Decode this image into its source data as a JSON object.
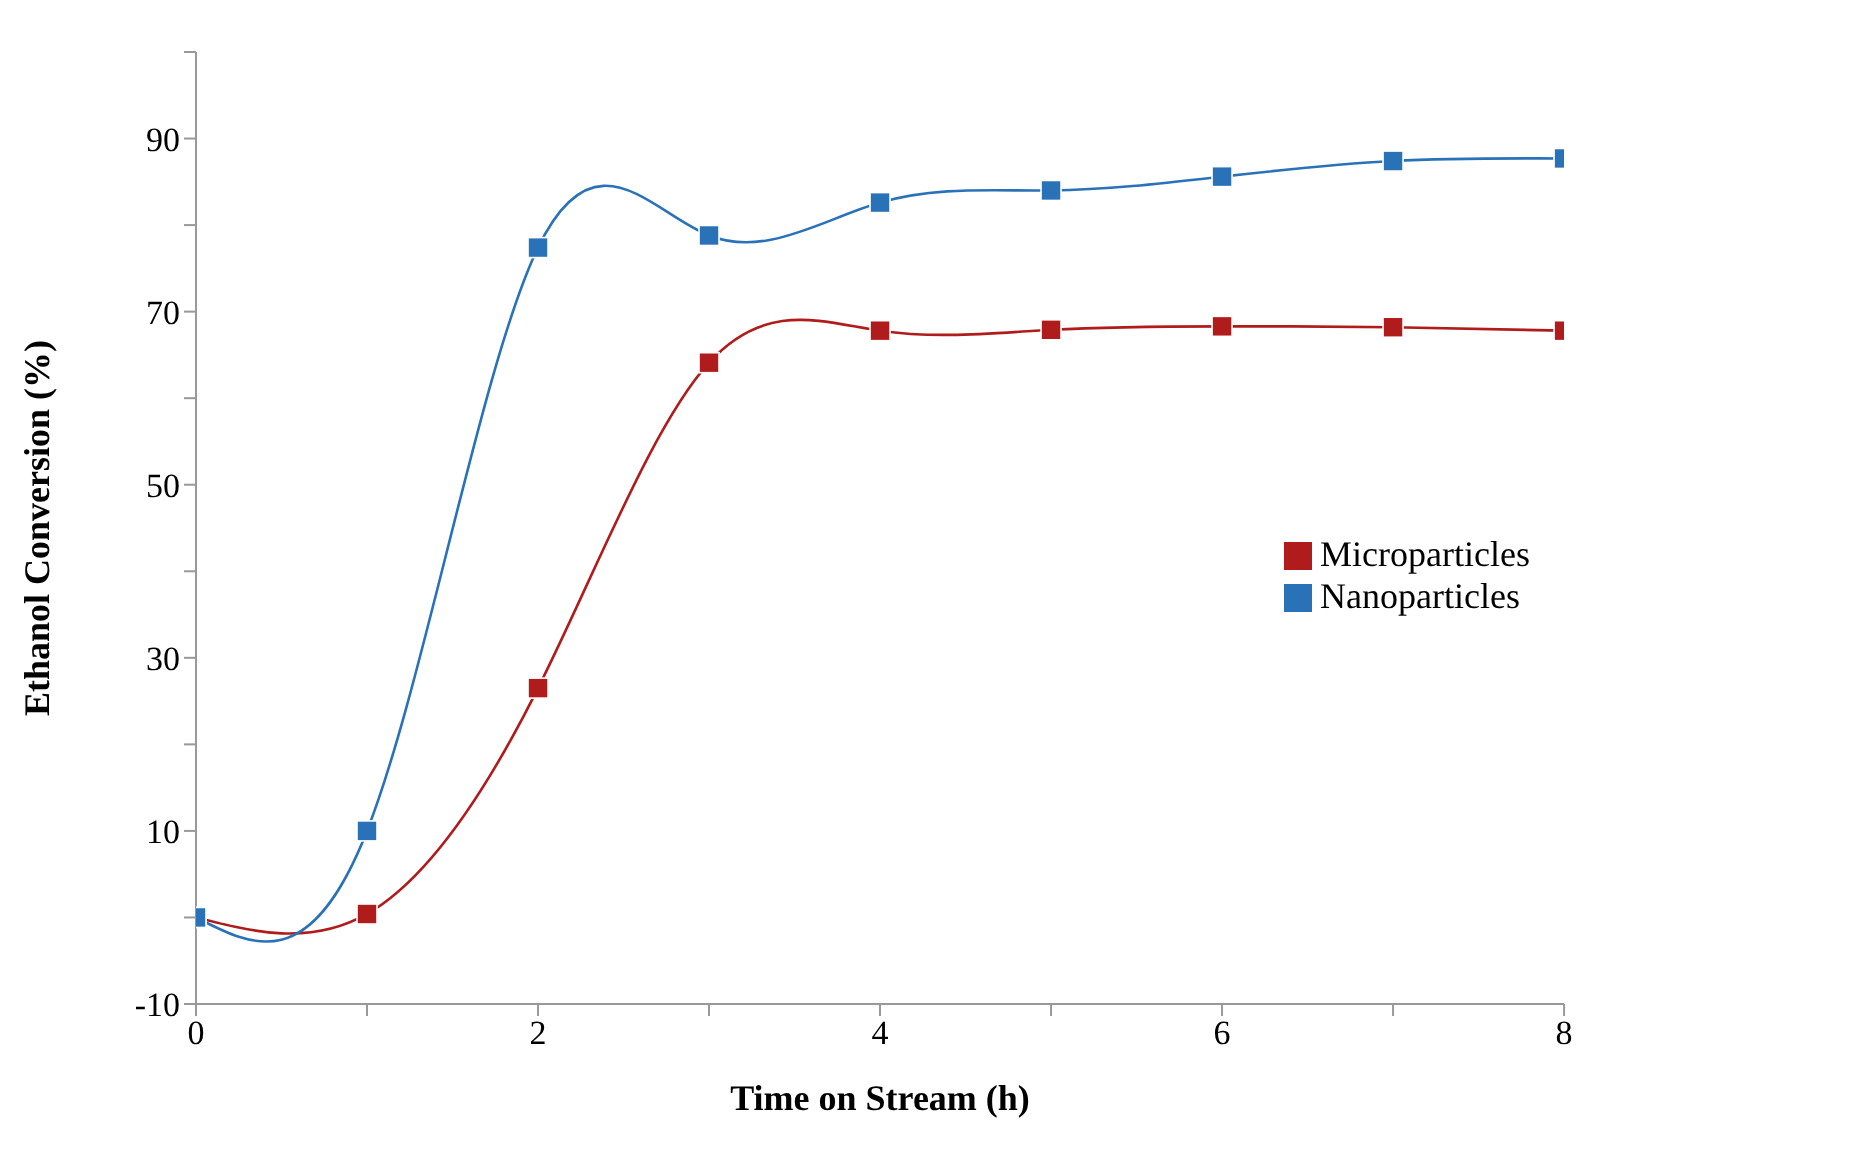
{
  "chart_data": {
    "type": "line",
    "xlabel": "Time on Stream (h)",
    "ylabel": "Ethanol Conversion (%)",
    "x": [
      0,
      1,
      2,
      3,
      4,
      5,
      6,
      7,
      8
    ],
    "series": [
      {
        "name": "Microparticles",
        "color": "#b01c1c",
        "values": [
          0,
          0.4,
          26.5,
          64.1,
          67.8,
          67.9,
          68.3,
          68.2,
          67.8
        ]
      },
      {
        "name": "Nanoparticles",
        "color": "#2a72b8",
        "values": [
          0,
          10,
          77.4,
          78.8,
          82.6,
          84,
          85.6,
          87.4,
          87.7
        ]
      }
    ],
    "xlim": [
      0,
      8
    ],
    "xticks": [
      0,
      {
        "value": 1,
        "label": null
      },
      2,
      {
        "value": 3,
        "label": null
      },
      4,
      {
        "value": 5,
        "label": null
      },
      6,
      {
        "value": 7,
        "label": null
      },
      8
    ],
    "ylim": [
      -10,
      100
    ],
    "yticks": [
      -10,
      {
        "value": 0,
        "label": null
      },
      10,
      {
        "value": 20,
        "label": null
      },
      30,
      {
        "value": 40,
        "label": null
      },
      50,
      {
        "value": 60,
        "label": null
      },
      70,
      {
        "value": 80,
        "label": null
      },
      90,
      {
        "value": 100,
        "label": null
      }
    ],
    "grid": false,
    "legend": "right",
    "marker": "square",
    "line_style": "solid"
  }
}
